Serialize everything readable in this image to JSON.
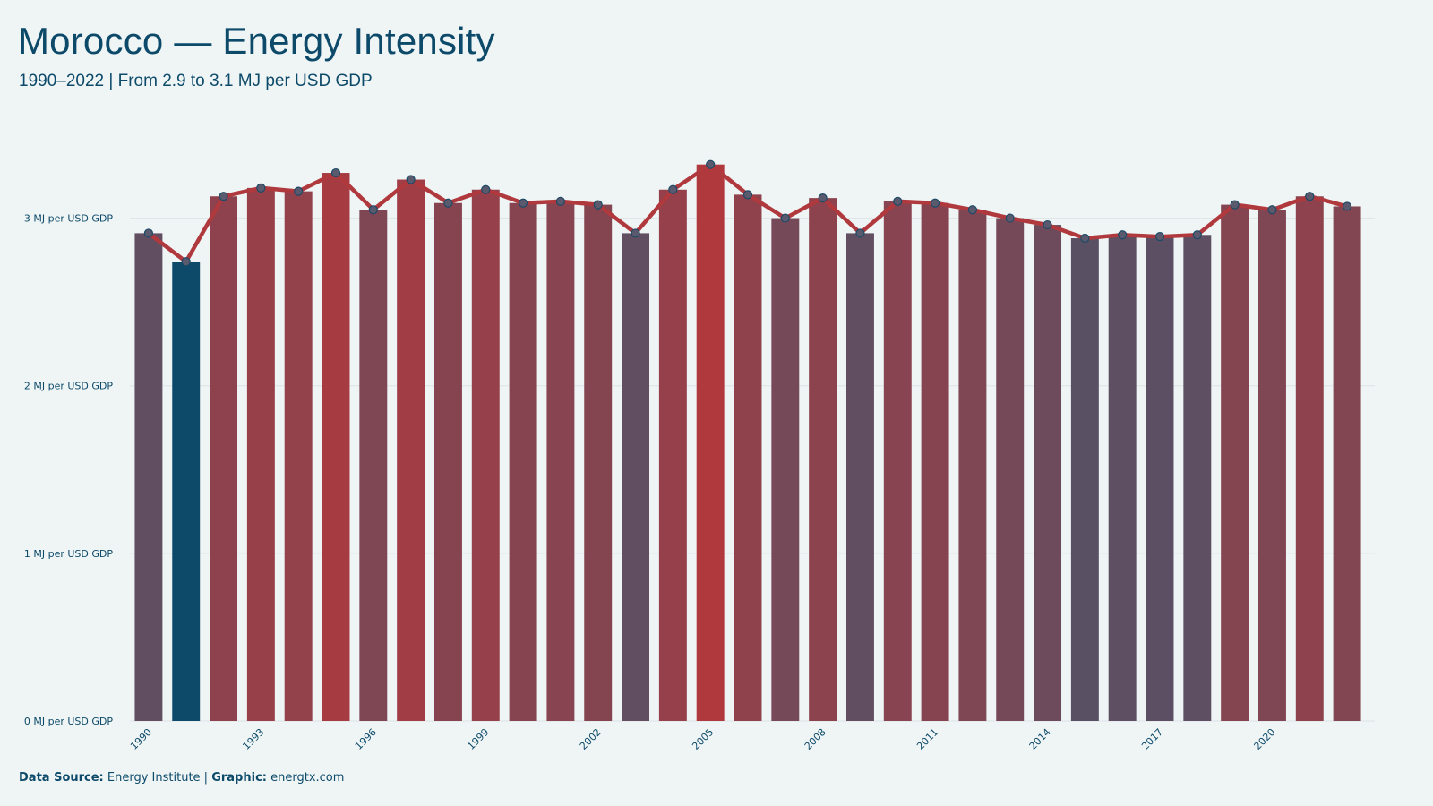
{
  "title": "Morocco — Energy Intensity",
  "subtitle": "1990–2022 | From 2.9 to 3.1 MJ per USD GDP",
  "footer": {
    "source_label": "Data Source:",
    "source_value": "Energy Institute |",
    "graphic_label": "Graphic:",
    "graphic_value": "energtx.com"
  },
  "colors": {
    "low": "#5a5064",
    "high": "#b0393e",
    "min_highlight": "#0d4a6a",
    "line": "#b0393e",
    "marker_fill": "#5a5a6e",
    "marker_stroke": "#1e4a66",
    "grid": "#dde3e6",
    "text": "#0d4a6a"
  },
  "chart_data": {
    "type": "bar",
    "overlay": "line",
    "categories": [
      "1990",
      "1991",
      "1992",
      "1993",
      "1994",
      "1995",
      "1996",
      "1997",
      "1998",
      "1999",
      "2000",
      "2001",
      "2002",
      "2003",
      "2004",
      "2005",
      "2006",
      "2007",
      "2008",
      "2009",
      "2010",
      "2011",
      "2012",
      "2013",
      "2014",
      "2015",
      "2016",
      "2017",
      "2018",
      "2019",
      "2020",
      "2021",
      "2022"
    ],
    "values": [
      2.91,
      2.74,
      3.13,
      3.18,
      3.16,
      3.27,
      3.05,
      3.23,
      3.09,
      3.17,
      3.09,
      3.1,
      3.08,
      2.91,
      3.17,
      3.32,
      3.14,
      3.0,
      3.12,
      2.91,
      3.1,
      3.09,
      3.05,
      3.0,
      2.96,
      2.88,
      2.9,
      2.89,
      2.9,
      3.08,
      3.05,
      3.13,
      3.07
    ],
    "x_tick_labels": [
      "1990",
      "1993",
      "1996",
      "1999",
      "2002",
      "2005",
      "2008",
      "2011",
      "2014",
      "2017",
      "2020"
    ],
    "y_ticks": [
      0,
      1,
      2,
      3
    ],
    "y_tick_labels": [
      "0 MJ per USD GDP",
      "1 MJ per USD GDP",
      "2 MJ per USD GDP",
      "3 MJ per USD GDP"
    ],
    "ylim": [
      0,
      3.5
    ],
    "xlabel": "",
    "ylabel": "",
    "grid": true,
    "legend": false
  }
}
